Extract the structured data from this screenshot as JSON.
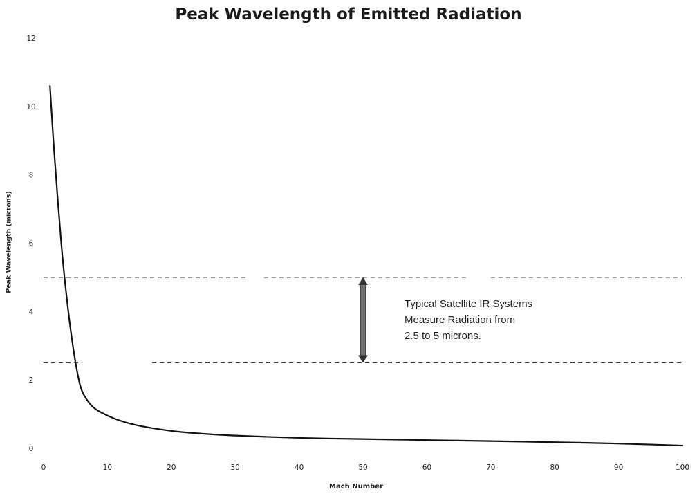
{
  "chart_data": {
    "type": "line",
    "title": "Peak  Wavelength of Emitted Radiation",
    "xlabel": "Mach Number",
    "ylabel": "Peak Wavelength (microns)",
    "xlim": [
      0,
      100
    ],
    "ylim": [
      0,
      12
    ],
    "xticks": [
      0,
      10,
      20,
      30,
      40,
      50,
      60,
      70,
      80,
      90,
      100
    ],
    "yticks": [
      0,
      2,
      4,
      6,
      8,
      10,
      12
    ],
    "grid": false,
    "series": [
      {
        "x": [
          1,
          1.5,
          2,
          2.5,
          3,
          3.5,
          4,
          4.5,
          5,
          5.5,
          6,
          7,
          8,
          10,
          12,
          15,
          20,
          25,
          30,
          40,
          50,
          60,
          70,
          80,
          90,
          100
        ],
        "y": [
          10.6,
          9.1,
          7.8,
          6.6,
          5.5,
          4.6,
          3.8,
          3.1,
          2.5,
          2.0,
          1.65,
          1.35,
          1.15,
          0.95,
          0.8,
          0.65,
          0.5,
          0.42,
          0.37,
          0.3,
          0.27,
          0.24,
          0.21,
          0.18,
          0.14,
          0.08
        ]
      }
    ],
    "reference_lines": [
      {
        "y": 5,
        "style": "dashed"
      },
      {
        "y": 2.5,
        "style": "dashed"
      }
    ],
    "annotation": {
      "arrow_x": 50,
      "arrow_y_from": 2.5,
      "arrow_y_to": 5,
      "lines": [
        "Typical Satellite IR Systems",
        "Measure Radiation from",
        "2.5 to 5 microns."
      ]
    }
  }
}
